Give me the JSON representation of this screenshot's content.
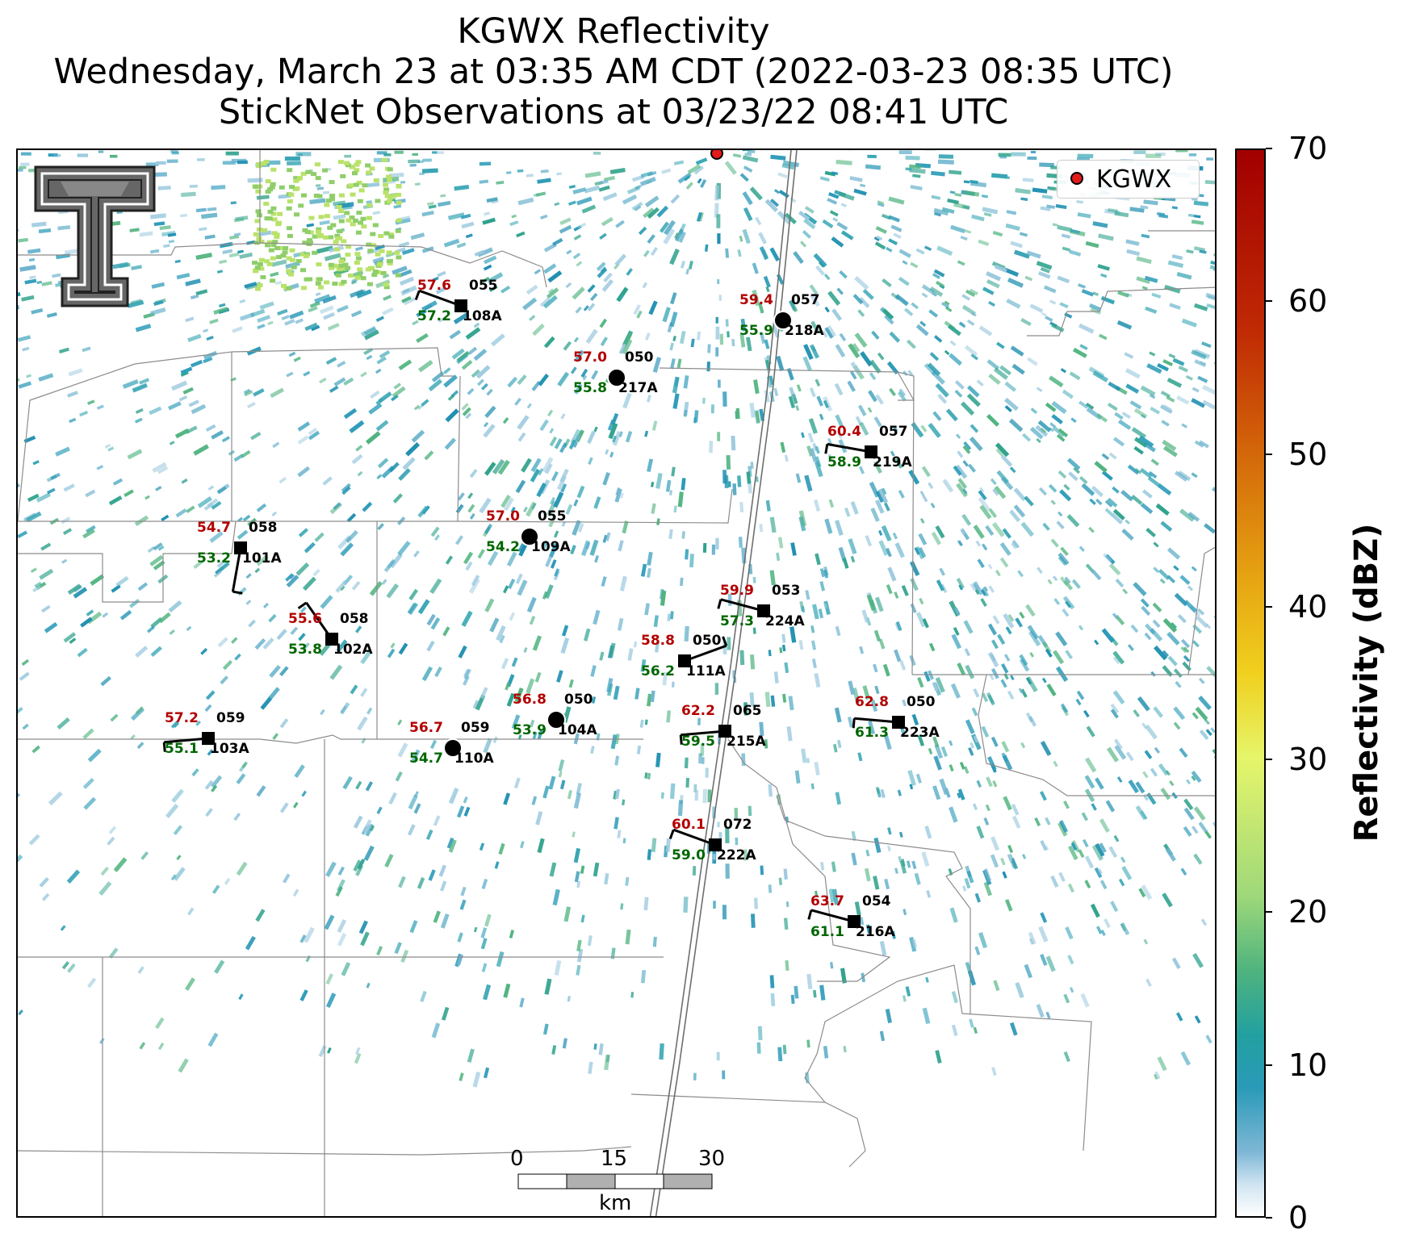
{
  "title": {
    "line1": "KGWX Reflectivity",
    "line2": "Wednesday, March 23 at 03:35 AM CDT (2022-03-23 08:35 UTC)",
    "line3": "StickNet Observations at 03/23/22 08:41 UTC"
  },
  "legend": {
    "label": "KGWX",
    "color": "#e21b1b"
  },
  "colorbar": {
    "title": "Reflectivity (dBZ)",
    "ticks": [
      "0",
      "10",
      "20",
      "30",
      "40",
      "50",
      "60",
      "70"
    ],
    "range": [
      0,
      70
    ]
  },
  "scalebar": {
    "ticks": [
      "0",
      "15",
      "30"
    ],
    "unit": "km"
  },
  "stations": [
    {
      "id": "055",
      "temp": "57.6",
      "dew": "57.2",
      "pres": "055",
      "name": "108A",
      "marker": "square"
    },
    {
      "id": "050",
      "temp": "57.0",
      "dew": "55.8",
      "pres": "050",
      "name": "217A",
      "marker": "circle"
    },
    {
      "id": "057",
      "temp": "59.4",
      "dew": "55.9",
      "pres": "057",
      "name": "218A",
      "marker": "circle"
    },
    {
      "id": "057b",
      "temp": "60.4",
      "dew": "58.9",
      "pres": "057",
      "name": "219A",
      "marker": "square"
    },
    {
      "id": "055b",
      "temp": "57.0",
      "dew": "54.2",
      "pres": "055",
      "name": "109A",
      "marker": "circle"
    },
    {
      "id": "058",
      "temp": "54.7",
      "dew": "53.2",
      "pres": "058",
      "name": "101A",
      "marker": "square"
    },
    {
      "id": "053",
      "temp": "59.9",
      "dew": "57.3",
      "pres": "053",
      "name": "224A",
      "marker": "square"
    },
    {
      "id": "058b",
      "temp": "55.6",
      "dew": "53.8",
      "pres": "058",
      "name": "102A",
      "marker": "square"
    },
    {
      "id": "050b",
      "temp": "58.8",
      "dew": "56.2",
      "pres": "050",
      "name": "111A",
      "marker": "square"
    },
    {
      "id": "050c",
      "temp": "56.8",
      "dew": "53.9",
      "pres": "050",
      "name": "104A",
      "marker": "circle"
    },
    {
      "id": "065",
      "temp": "62.2",
      "dew": "59.5",
      "pres": "065",
      "name": "215A",
      "marker": "square"
    },
    {
      "id": "050d",
      "temp": "62.8",
      "dew": "61.3",
      "pres": "050",
      "name": "223A",
      "marker": "square"
    },
    {
      "id": "059",
      "temp": "57.2",
      "dew": "55.1",
      "pres": "059",
      "name": "103A",
      "marker": "square"
    },
    {
      "id": "059b",
      "temp": "56.7",
      "dew": "54.7",
      "pres": "059",
      "name": "110A",
      "marker": "circle"
    },
    {
      "id": "072",
      "temp": "60.1",
      "dew": "59.0",
      "pres": "072",
      "name": "222A",
      "marker": "square"
    },
    {
      "id": "054",
      "temp": "63.7",
      "dew": "61.1",
      "pres": "054",
      "name": "216A",
      "marker": "square"
    }
  ]
}
